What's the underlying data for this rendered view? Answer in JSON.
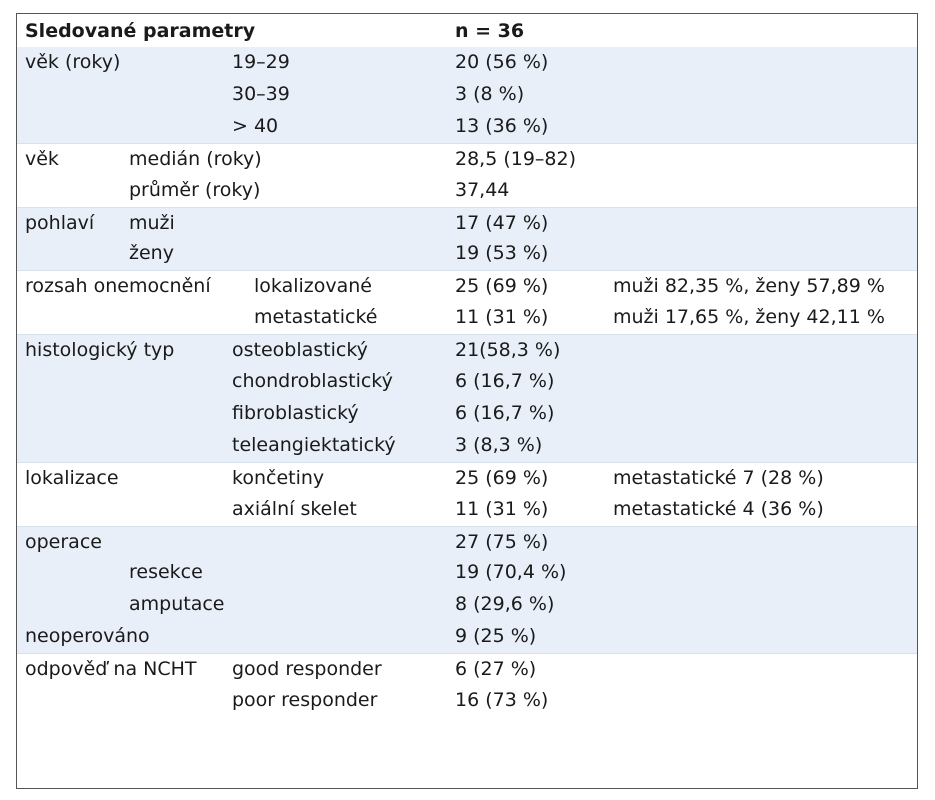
{
  "table": {
    "header": {
      "col0": "Sledované parametry",
      "col3": "n = 36"
    },
    "rows": [
      {
        "c0": "věk (roky)",
        "c1": "19–29",
        "c3": "20 (56 %)",
        "c4": "",
        "shade": true
      },
      {
        "c0": "",
        "c1": "30–39",
        "c3": "3 (8 %)",
        "c4": "",
        "shade": true
      },
      {
        "c0": "",
        "c1": "> 40",
        "c3": "13 (36 %)",
        "c4": "",
        "shade": true
      },
      {
        "c0": "věk",
        "c1": "medián (roky)",
        "c3": "28,5 (19–82)",
        "c4": "",
        "shade": false
      },
      {
        "c0": "",
        "c1": "průměr (roky)",
        "c3": "37,44",
        "c4": "",
        "shade": false
      },
      {
        "c0": "pohlaví",
        "c1": "muži",
        "c3": "17 (47 %)",
        "c4": "",
        "shade": true
      },
      {
        "c0": "",
        "c1": "ženy",
        "c3": "19 (53 %)",
        "c4": "",
        "shade": true
      },
      {
        "c0": "rozsah onemocnění",
        "c1": "lokalizované",
        "c3": "25 (69 %)",
        "c4": "muži 82,35 %, ženy 57,89 %",
        "shade": false
      },
      {
        "c0": "",
        "c1": "metastatické",
        "c3": "11 (31 %)",
        "c4": "muži 17,65 %, ženy 42,11 %",
        "shade": false
      },
      {
        "c0": "histologický typ",
        "c1": "osteoblastický",
        "c3": "21(58,3 %)",
        "c4": "",
        "shade": true
      },
      {
        "c0": "",
        "c1": "chondroblastický",
        "c3": "6 (16,7 %)",
        "c4": "",
        "shade": true
      },
      {
        "c0": "",
        "c1": "fibroblastický",
        "c3": "6 (16,7 %)",
        "c4": "",
        "shade": true
      },
      {
        "c0": "",
        "c1": "teleangiektatický",
        "c3": "3 (8,3 %)",
        "c4": "",
        "shade": true
      },
      {
        "c0": "lokalizace",
        "c1": "končetiny",
        "c3": "25 (69 %)",
        "c4": "metastatické 7 (28 %)",
        "shade": false
      },
      {
        "c0": "",
        "c1": "axiální skelet",
        "c3": "11 (31 %)",
        "c4": "metastatické 4 (36 %)",
        "shade": false
      },
      {
        "c0": "operace",
        "c1": "",
        "c3": "27 (75 %)",
        "c4": "",
        "shade": true
      },
      {
        "c0": "",
        "c1": "resekce",
        "c3": "19 (70,4 %)",
        "c4": "",
        "shade": true
      },
      {
        "c0": "",
        "c1": "amputace",
        "c3": "8 (29,6 %)",
        "c4": "",
        "shade": true
      },
      {
        "c0": "neoperováno",
        "c1": "",
        "c3": "9 (25 %)",
        "c4": "",
        "shade": true
      },
      {
        "c0": "odpověď na NCHT",
        "c1": "good responder",
        "c3": "6 (27 %)",
        "c4": "",
        "shade": false
      },
      {
        "c0": "",
        "c1": "poor responder",
        "c3": "16 (73 %)",
        "c4": "",
        "shade": false
      }
    ]
  }
}
